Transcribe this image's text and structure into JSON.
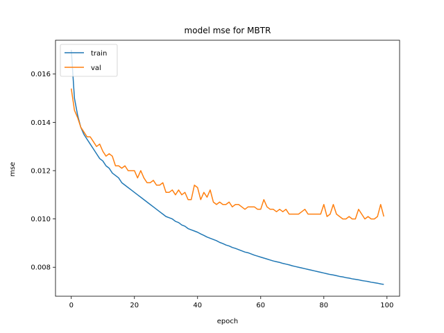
{
  "chart_data": {
    "type": "line",
    "title": "model mse for MBTR",
    "xlabel": "epoch",
    "ylabel": "mse",
    "xlim": [
      -5,
      104
    ],
    "ylim": [
      0.0068,
      0.0174
    ],
    "xticks": [
      0,
      20,
      40,
      60,
      80,
      100
    ],
    "yticks": [
      0.008,
      0.01,
      0.012,
      0.014,
      0.016
    ],
    "ytick_labels": [
      "0.008",
      "0.010",
      "0.012",
      "0.014",
      "0.016"
    ],
    "legend": "upper-left",
    "grid": false,
    "series": [
      {
        "name": "train",
        "color": "#1f77b4",
        "x": [
          0,
          1,
          2,
          3,
          4,
          5,
          6,
          7,
          8,
          9,
          10,
          11,
          12,
          13,
          14,
          15,
          16,
          17,
          18,
          19,
          20,
          21,
          22,
          23,
          24,
          25,
          26,
          27,
          28,
          29,
          30,
          31,
          32,
          33,
          34,
          35,
          36,
          37,
          38,
          39,
          40,
          41,
          42,
          43,
          44,
          45,
          46,
          47,
          48,
          49,
          50,
          51,
          52,
          53,
          54,
          55,
          56,
          57,
          58,
          59,
          60,
          61,
          62,
          63,
          64,
          65,
          66,
          67,
          68,
          69,
          70,
          71,
          72,
          73,
          74,
          75,
          76,
          77,
          78,
          79,
          80,
          81,
          82,
          83,
          84,
          85,
          86,
          87,
          88,
          89,
          90,
          91,
          92,
          93,
          94,
          95,
          96,
          97,
          98,
          99
        ],
        "values": [
          0.017,
          0.015,
          0.0143,
          0.0138,
          0.0135,
          0.0133,
          0.0131,
          0.0129,
          0.0127,
          0.0125,
          0.0124,
          0.0122,
          0.0121,
          0.0119,
          0.0118,
          0.0117,
          0.0115,
          0.0114,
          0.0113,
          0.0112,
          0.0111,
          0.011,
          0.0109,
          0.0108,
          0.0107,
          0.0106,
          0.0105,
          0.0104,
          0.0103,
          0.0102,
          0.0101,
          0.01005,
          0.01,
          0.0099,
          0.00985,
          0.00975,
          0.0097,
          0.0096,
          0.00955,
          0.0095,
          0.00945,
          0.00938,
          0.00932,
          0.00925,
          0.0092,
          0.00915,
          0.0091,
          0.00903,
          0.00898,
          0.00892,
          0.00888,
          0.00882,
          0.00878,
          0.00873,
          0.00868,
          0.00863,
          0.0086,
          0.00855,
          0.0085,
          0.00846,
          0.00842,
          0.00838,
          0.00834,
          0.0083,
          0.00826,
          0.00823,
          0.0082,
          0.00816,
          0.00813,
          0.0081,
          0.00806,
          0.00803,
          0.008,
          0.00797,
          0.00794,
          0.00791,
          0.00788,
          0.00785,
          0.00782,
          0.00779,
          0.00776,
          0.00773,
          0.0077,
          0.00768,
          0.00765,
          0.00762,
          0.0076,
          0.00757,
          0.00755,
          0.00752,
          0.0075,
          0.00748,
          0.00745,
          0.00743,
          0.00741,
          0.00738,
          0.00736,
          0.00734,
          0.00731,
          0.00729
        ]
      },
      {
        "name": "val",
        "color": "#ff7f0e",
        "x": [
          0,
          1,
          2,
          3,
          4,
          5,
          6,
          7,
          8,
          9,
          10,
          11,
          12,
          13,
          14,
          15,
          16,
          17,
          18,
          19,
          20,
          21,
          22,
          23,
          24,
          25,
          26,
          27,
          28,
          29,
          30,
          31,
          32,
          33,
          34,
          35,
          36,
          37,
          38,
          39,
          40,
          41,
          42,
          43,
          44,
          45,
          46,
          47,
          48,
          49,
          50,
          51,
          52,
          53,
          54,
          55,
          56,
          57,
          58,
          59,
          60,
          61,
          62,
          63,
          64,
          65,
          66,
          67,
          68,
          69,
          70,
          71,
          72,
          73,
          74,
          75,
          76,
          77,
          78,
          79,
          80,
          81,
          82,
          83,
          84,
          85,
          86,
          87,
          88,
          89,
          90,
          91,
          92,
          93,
          94,
          95,
          96,
          97,
          98,
          99
        ],
        "values": [
          0.0154,
          0.0145,
          0.0142,
          0.0138,
          0.0136,
          0.0134,
          0.0134,
          0.0132,
          0.013,
          0.0131,
          0.0128,
          0.0126,
          0.0127,
          0.0126,
          0.0122,
          0.0122,
          0.0121,
          0.0122,
          0.012,
          0.012,
          0.012,
          0.0117,
          0.012,
          0.0117,
          0.0115,
          0.0115,
          0.0116,
          0.0114,
          0.0114,
          0.0115,
          0.0111,
          0.0111,
          0.0112,
          0.011,
          0.0112,
          0.011,
          0.0111,
          0.0108,
          0.0108,
          0.0114,
          0.0113,
          0.0108,
          0.0111,
          0.0109,
          0.0112,
          0.0107,
          0.0106,
          0.0107,
          0.0106,
          0.0106,
          0.0107,
          0.0105,
          0.0106,
          0.0106,
          0.0105,
          0.0104,
          0.0105,
          0.0105,
          0.0105,
          0.0104,
          0.0104,
          0.0108,
          0.0105,
          0.0104,
          0.0104,
          0.0103,
          0.0104,
          0.0103,
          0.0104,
          0.0102,
          0.0102,
          0.0102,
          0.0102,
          0.0103,
          0.0104,
          0.0102,
          0.0102,
          0.0102,
          0.0102,
          0.0102,
          0.0106,
          0.0101,
          0.0102,
          0.0106,
          0.0102,
          0.0101,
          0.01,
          0.01,
          0.0101,
          0.01,
          0.01,
          0.0104,
          0.0102,
          0.01,
          0.0101,
          0.01,
          0.01,
          0.0101,
          0.0106,
          0.0101
        ]
      }
    ]
  }
}
